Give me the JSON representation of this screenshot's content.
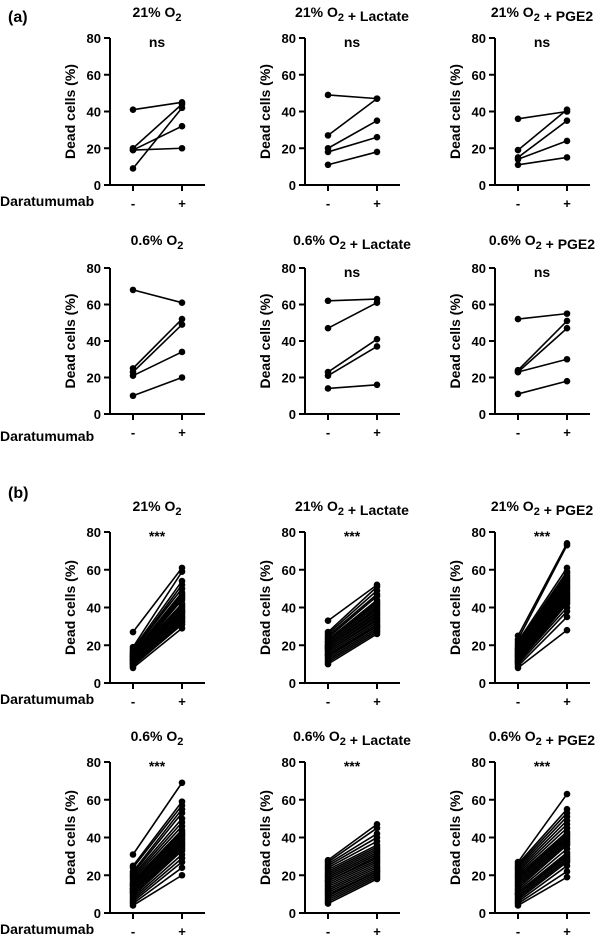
{
  "figure": {
    "panel_a_label": "(a)",
    "panel_b_label": "(b)",
    "xrow_label": "Daratumumab",
    "ylabel": "Dead cells (%)",
    "xcats": [
      "-",
      "+"
    ]
  },
  "chart_data": [
    {
      "type": "line",
      "group": "a",
      "title": "21% O2",
      "significance": "ns",
      "ylim": [
        0,
        80
      ],
      "yticks": [
        0,
        20,
        40,
        60,
        80
      ],
      "xlabel": "Daratumumab",
      "ylabel": "Dead cells (%)",
      "categories": [
        "-",
        "+"
      ],
      "pairs": [
        [
          41,
          45
        ],
        [
          20,
          44
        ],
        [
          19,
          32
        ],
        [
          9,
          42
        ],
        [
          19,
          20
        ]
      ]
    },
    {
      "type": "line",
      "group": "a",
      "title": "21% O2 + Lactate",
      "significance": "ns",
      "ylim": [
        0,
        80
      ],
      "yticks": [
        0,
        20,
        40,
        60,
        80
      ],
      "xlabel": "Daratumumab",
      "ylabel": "Dead cells (%)",
      "categories": [
        "-",
        "+"
      ],
      "pairs": [
        [
          49,
          47
        ],
        [
          27,
          47
        ],
        [
          20,
          35
        ],
        [
          18,
          26
        ],
        [
          11,
          18
        ]
      ]
    },
    {
      "type": "line",
      "group": "a",
      "title": "21% O2 + PGE2",
      "significance": "ns",
      "ylim": [
        0,
        80
      ],
      "yticks": [
        0,
        20,
        40,
        60,
        80
      ],
      "xlabel": "Daratumumab",
      "ylabel": "Dead cells (%)",
      "categories": [
        "-",
        "+"
      ],
      "pairs": [
        [
          36,
          40
        ],
        [
          19,
          41
        ],
        [
          15,
          35
        ],
        [
          14,
          24
        ],
        [
          11,
          15
        ]
      ]
    },
    {
      "type": "line",
      "group": "a",
      "title": "0.6% O2",
      "significance": "",
      "ylim": [
        0,
        80
      ],
      "yticks": [
        0,
        20,
        40,
        60,
        80
      ],
      "xlabel": "Daratumumab",
      "ylabel": "Dead cells (%)",
      "categories": [
        "-",
        "+"
      ],
      "pairs": [
        [
          68,
          61
        ],
        [
          25,
          52
        ],
        [
          23,
          49
        ],
        [
          21,
          34
        ],
        [
          10,
          20
        ]
      ]
    },
    {
      "type": "line",
      "group": "a",
      "title": "0.6% O2 + Lactate",
      "significance": "ns",
      "ylim": [
        0,
        80
      ],
      "yticks": [
        0,
        20,
        40,
        60,
        80
      ],
      "xlabel": "Daratumumab",
      "ylabel": "Dead cells (%)",
      "categories": [
        "-",
        "+"
      ],
      "pairs": [
        [
          62,
          63
        ],
        [
          47,
          61
        ],
        [
          23,
          41
        ],
        [
          21,
          37
        ],
        [
          14,
          16
        ]
      ]
    },
    {
      "type": "line",
      "group": "a",
      "title": "0.6% O2 + PGE2",
      "significance": "ns",
      "ylim": [
        0,
        80
      ],
      "yticks": [
        0,
        20,
        40,
        60,
        80
      ],
      "xlabel": "Daratumumab",
      "ylabel": "Dead cells (%)",
      "categories": [
        "-",
        "+"
      ],
      "pairs": [
        [
          52,
          55
        ],
        [
          24,
          51
        ],
        [
          23,
          47
        ],
        [
          23,
          30
        ],
        [
          11,
          18
        ]
      ]
    },
    {
      "type": "line",
      "group": "b",
      "title": "21% O2",
      "significance": "***",
      "ylim": [
        0,
        80
      ],
      "yticks": [
        0,
        20,
        40,
        60,
        80
      ],
      "xlabel": "Daratumumab",
      "ylabel": "Dead cells (%)",
      "categories": [
        "-",
        "+"
      ],
      "pairs": [
        [
          27,
          61
        ],
        [
          19,
          59
        ],
        [
          18,
          54
        ],
        [
          17,
          52
        ],
        [
          17,
          50
        ],
        [
          16,
          48
        ],
        [
          16,
          47
        ],
        [
          15,
          46
        ],
        [
          15,
          45
        ],
        [
          14,
          44
        ],
        [
          14,
          42
        ],
        [
          14,
          41
        ],
        [
          13,
          40
        ],
        [
          13,
          39
        ],
        [
          13,
          38
        ],
        [
          12,
          38
        ],
        [
          12,
          37
        ],
        [
          12,
          36
        ],
        [
          11,
          35
        ],
        [
          11,
          35
        ],
        [
          10,
          34
        ],
        [
          10,
          33
        ],
        [
          9,
          32
        ],
        [
          9,
          31
        ],
        [
          8,
          29
        ]
      ]
    },
    {
      "type": "line",
      "group": "b",
      "title": "21% O2 + Lactate",
      "significance": "***",
      "ylim": [
        0,
        80
      ],
      "yticks": [
        0,
        20,
        40,
        60,
        80
      ],
      "xlabel": "Daratumumab",
      "ylabel": "Dead cells (%)",
      "categories": [
        "-",
        "+"
      ],
      "pairs": [
        [
          33,
          52
        ],
        [
          27,
          51
        ],
        [
          26,
          49
        ],
        [
          25,
          47
        ],
        [
          24,
          46
        ],
        [
          23,
          44
        ],
        [
          22,
          43
        ],
        [
          22,
          42
        ],
        [
          21,
          41
        ],
        [
          20,
          40
        ],
        [
          20,
          39
        ],
        [
          19,
          38
        ],
        [
          19,
          37
        ],
        [
          18,
          36
        ],
        [
          18,
          35
        ],
        [
          17,
          34
        ],
        [
          17,
          33
        ],
        [
          16,
          32
        ],
        [
          15,
          31
        ],
        [
          15,
          30
        ],
        [
          14,
          30
        ],
        [
          13,
          29
        ],
        [
          12,
          28
        ],
        [
          11,
          27
        ],
        [
          10,
          26
        ]
      ]
    },
    {
      "type": "line",
      "group": "b",
      "title": "21% O2 + PGE2",
      "significance": "***",
      "ylim": [
        0,
        80
      ],
      "yticks": [
        0,
        20,
        40,
        60,
        80
      ],
      "xlabel": "Daratumumab",
      "ylabel": "Dead cells (%)",
      "categories": [
        "-",
        "+"
      ],
      "pairs": [
        [
          25,
          74
        ],
        [
          23,
          73
        ],
        [
          22,
          61
        ],
        [
          21,
          59
        ],
        [
          20,
          58
        ],
        [
          19,
          57
        ],
        [
          18,
          56
        ],
        [
          18,
          55
        ],
        [
          17,
          54
        ],
        [
          17,
          53
        ],
        [
          16,
          52
        ],
        [
          16,
          51
        ],
        [
          15,
          50
        ],
        [
          15,
          49
        ],
        [
          14,
          48
        ],
        [
          14,
          47
        ],
        [
          13,
          46
        ],
        [
          13,
          45
        ],
        [
          12,
          44
        ],
        [
          12,
          43
        ],
        [
          11,
          42
        ],
        [
          11,
          40
        ],
        [
          10,
          38
        ],
        [
          9,
          35
        ],
        [
          8,
          28
        ]
      ]
    },
    {
      "type": "line",
      "group": "b",
      "title": "0.6% O2",
      "significance": "***",
      "ylim": [
        0,
        80
      ],
      "yticks": [
        0,
        20,
        40,
        60,
        80
      ],
      "xlabel": "Daratumumab",
      "ylabel": "Dead cells (%)",
      "categories": [
        "-",
        "+"
      ],
      "pairs": [
        [
          31,
          69
        ],
        [
          25,
          59
        ],
        [
          24,
          57
        ],
        [
          22,
          55
        ],
        [
          21,
          53
        ],
        [
          20,
          50
        ],
        [
          19,
          48
        ],
        [
          18,
          46
        ],
        [
          17,
          44
        ],
        [
          16,
          43
        ],
        [
          15,
          42
        ],
        [
          15,
          41
        ],
        [
          14,
          40
        ],
        [
          13,
          39
        ],
        [
          13,
          38
        ],
        [
          12,
          37
        ],
        [
          11,
          36
        ],
        [
          11,
          35
        ],
        [
          10,
          34
        ],
        [
          9,
          33
        ],
        [
          8,
          31
        ],
        [
          7,
          29
        ],
        [
          6,
          27
        ],
        [
          5,
          24
        ],
        [
          4,
          20
        ]
      ]
    },
    {
      "type": "line",
      "group": "b",
      "title": "0.6% O2 + Lactate",
      "significance": "***",
      "ylim": [
        0,
        80
      ],
      "yticks": [
        0,
        20,
        40,
        60,
        80
      ],
      "xlabel": "Daratumumab",
      "ylabel": "Dead cells (%)",
      "categories": [
        "-",
        "+"
      ],
      "pairs": [
        [
          28,
          47
        ],
        [
          27,
          45
        ],
        [
          26,
          42
        ],
        [
          25,
          40
        ],
        [
          24,
          38
        ],
        [
          23,
          36
        ],
        [
          22,
          35
        ],
        [
          21,
          34
        ],
        [
          20,
          33
        ],
        [
          19,
          32
        ],
        [
          18,
          31
        ],
        [
          17,
          30
        ],
        [
          17,
          29
        ],
        [
          16,
          28
        ],
        [
          15,
          27
        ],
        [
          14,
          26
        ],
        [
          13,
          25
        ],
        [
          12,
          24
        ],
        [
          11,
          23
        ],
        [
          10,
          22
        ],
        [
          9,
          22
        ],
        [
          8,
          21
        ],
        [
          7,
          20
        ],
        [
          6,
          19
        ],
        [
          5,
          18
        ]
      ]
    },
    {
      "type": "line",
      "group": "b",
      "title": "0.6% O2 + PGE2",
      "significance": "***",
      "ylim": [
        0,
        80
      ],
      "yticks": [
        0,
        20,
        40,
        60,
        80
      ],
      "xlabel": "Daratumumab",
      "ylabel": "Dead cells (%)",
      "categories": [
        "-",
        "+"
      ],
      "pairs": [
        [
          27,
          63
        ],
        [
          26,
          55
        ],
        [
          25,
          53
        ],
        [
          24,
          51
        ],
        [
          23,
          49
        ],
        [
          22,
          47
        ],
        [
          21,
          45
        ],
        [
          20,
          43
        ],
        [
          19,
          42
        ],
        [
          18,
          41
        ],
        [
          17,
          40
        ],
        [
          16,
          39
        ],
        [
          15,
          38
        ],
        [
          14,
          37
        ],
        [
          13,
          36
        ],
        [
          12,
          34
        ],
        [
          11,
          32
        ],
        [
          10,
          31
        ],
        [
          10,
          30
        ],
        [
          9,
          29
        ],
        [
          8,
          28
        ],
        [
          7,
          27
        ],
        [
          6,
          25
        ],
        [
          5,
          22
        ],
        [
          4,
          19
        ]
      ]
    }
  ]
}
